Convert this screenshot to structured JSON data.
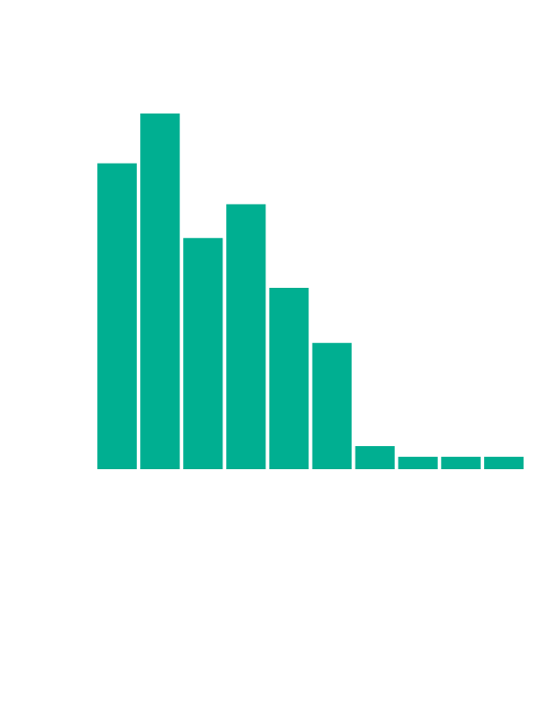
{
  "chart_data": {
    "type": "bar",
    "title": "",
    "xlabel": "",
    "ylabel": "",
    "ylim": [
      0,
      100
    ],
    "grid": false,
    "color": "#00af91",
    "values": [
      86,
      100,
      65,
      74.5,
      51,
      35.5,
      6.5,
      3.5,
      3.5,
      3.5
    ]
  }
}
